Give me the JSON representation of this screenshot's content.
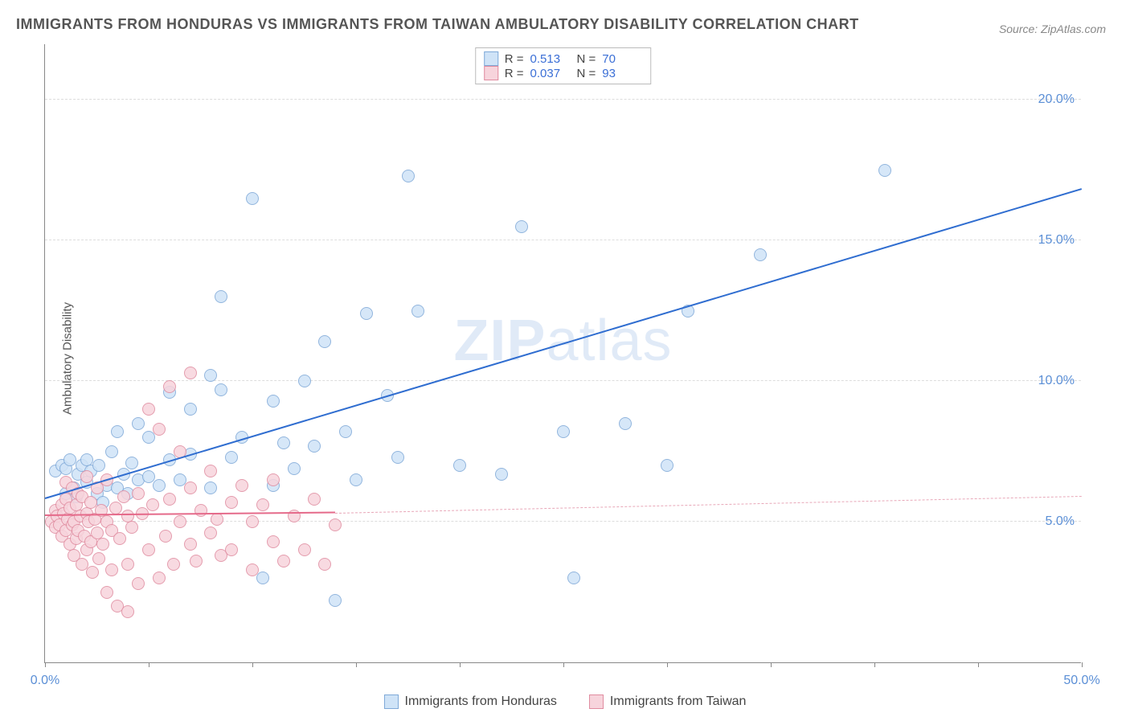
{
  "title": "IMMIGRANTS FROM HONDURAS VS IMMIGRANTS FROM TAIWAN AMBULATORY DISABILITY CORRELATION CHART",
  "source": "Source: ZipAtlas.com",
  "ylabel": "Ambulatory Disability",
  "watermark_bold": "ZIP",
  "watermark_rest": "atlas",
  "chart": {
    "type": "scatter",
    "xlim": [
      0,
      50
    ],
    "ylim": [
      0,
      22
    ],
    "ytick_values": [
      5,
      10,
      15,
      20
    ],
    "ytick_labels": [
      "5.0%",
      "10.0%",
      "15.0%",
      "20.0%"
    ],
    "xtick_values": [
      0,
      5,
      10,
      15,
      20,
      25,
      30,
      35,
      40,
      45,
      50
    ],
    "xtick_label_min": "0.0%",
    "xtick_label_max": "50.0%",
    "grid_color": "#dddddd",
    "background_color": "#ffffff",
    "marker_radius": 8,
    "marker_border_width": 1.2,
    "series": [
      {
        "name": "Immigrants from Honduras",
        "fill": "#cfe3f7",
        "stroke": "#7fa9d8",
        "r_value": "0.513",
        "n_value": "70",
        "trend": {
          "x1": 0,
          "y1": 5.8,
          "x2": 50,
          "y2": 16.8,
          "color": "#2f6dd0",
          "width": 2.5
        },
        "points": [
          [
            0.5,
            6.8
          ],
          [
            0.8,
            7.0
          ],
          [
            1.0,
            6.0
          ],
          [
            1.0,
            6.9
          ],
          [
            1.2,
            7.2
          ],
          [
            1.4,
            6.2
          ],
          [
            1.5,
            5.9
          ],
          [
            1.6,
            6.7
          ],
          [
            1.8,
            7.0
          ],
          [
            2.0,
            6.4
          ],
          [
            2.0,
            7.2
          ],
          [
            2.2,
            6.8
          ],
          [
            2.5,
            6.0
          ],
          [
            2.6,
            7.0
          ],
          [
            2.8,
            5.7
          ],
          [
            3.0,
            6.3
          ],
          [
            3.2,
            7.5
          ],
          [
            3.5,
            6.2
          ],
          [
            3.5,
            8.2
          ],
          [
            3.8,
            6.7
          ],
          [
            4.0,
            6.0
          ],
          [
            4.2,
            7.1
          ],
          [
            4.5,
            6.5
          ],
          [
            4.5,
            8.5
          ],
          [
            5.0,
            6.6
          ],
          [
            5.0,
            8.0
          ],
          [
            5.5,
            6.3
          ],
          [
            6.0,
            7.2
          ],
          [
            6.0,
            9.6
          ],
          [
            6.5,
            6.5
          ],
          [
            7.0,
            7.4
          ],
          [
            7.0,
            9.0
          ],
          [
            8.0,
            6.2
          ],
          [
            8.0,
            10.2
          ],
          [
            8.5,
            9.7
          ],
          [
            8.5,
            13.0
          ],
          [
            9.0,
            7.3
          ],
          [
            9.5,
            8.0
          ],
          [
            10.0,
            16.5
          ],
          [
            10.5,
            3.0
          ],
          [
            11.0,
            6.3
          ],
          [
            11.0,
            9.3
          ],
          [
            11.5,
            7.8
          ],
          [
            12.0,
            6.9
          ],
          [
            12.5,
            10.0
          ],
          [
            13.0,
            7.7
          ],
          [
            13.5,
            11.4
          ],
          [
            14.0,
            2.2
          ],
          [
            14.5,
            8.2
          ],
          [
            15.0,
            6.5
          ],
          [
            15.5,
            12.4
          ],
          [
            16.5,
            9.5
          ],
          [
            17.0,
            7.3
          ],
          [
            17.5,
            17.3
          ],
          [
            18.0,
            12.5
          ],
          [
            20.0,
            7.0
          ],
          [
            22.0,
            6.7
          ],
          [
            23.0,
            15.5
          ],
          [
            25.0,
            8.2
          ],
          [
            25.5,
            3.0
          ],
          [
            28.0,
            8.5
          ],
          [
            30.0,
            7.0
          ],
          [
            31.0,
            12.5
          ],
          [
            34.5,
            14.5
          ],
          [
            40.5,
            17.5
          ]
        ]
      },
      {
        "name": "Immigrants from Taiwan",
        "fill": "#f7d4dc",
        "stroke": "#e08ca0",
        "r_value": "0.037",
        "n_value": "93",
        "trend_solid": {
          "x1": 0,
          "y1": 5.2,
          "x2": 14,
          "y2": 5.3,
          "color": "#e56a8a",
          "width": 2
        },
        "trend_dash": {
          "x1": 14,
          "y1": 5.3,
          "x2": 50,
          "y2": 5.9,
          "color": "#e8a7b8",
          "width": 1.5
        },
        "points": [
          [
            0.3,
            5.0
          ],
          [
            0.5,
            4.8
          ],
          [
            0.5,
            5.4
          ],
          [
            0.6,
            5.2
          ],
          [
            0.7,
            4.9
          ],
          [
            0.8,
            5.6
          ],
          [
            0.8,
            4.5
          ],
          [
            0.9,
            5.3
          ],
          [
            1.0,
            4.7
          ],
          [
            1.0,
            5.8
          ],
          [
            1.0,
            6.4
          ],
          [
            1.1,
            5.1
          ],
          [
            1.2,
            4.2
          ],
          [
            1.2,
            5.5
          ],
          [
            1.3,
            4.9
          ],
          [
            1.3,
            6.2
          ],
          [
            1.4,
            3.8
          ],
          [
            1.4,
            5.0
          ],
          [
            1.5,
            5.6
          ],
          [
            1.5,
            4.4
          ],
          [
            1.6,
            6.0
          ],
          [
            1.6,
            4.7
          ],
          [
            1.7,
            5.2
          ],
          [
            1.8,
            3.5
          ],
          [
            1.8,
            5.9
          ],
          [
            1.9,
            4.5
          ],
          [
            2.0,
            5.3
          ],
          [
            2.0,
            4.0
          ],
          [
            2.0,
            6.6
          ],
          [
            2.1,
            5.0
          ],
          [
            2.2,
            4.3
          ],
          [
            2.2,
            5.7
          ],
          [
            2.3,
            3.2
          ],
          [
            2.4,
            5.1
          ],
          [
            2.5,
            4.6
          ],
          [
            2.5,
            6.2
          ],
          [
            2.6,
            3.7
          ],
          [
            2.7,
            5.4
          ],
          [
            2.8,
            4.2
          ],
          [
            3.0,
            5.0
          ],
          [
            3.0,
            2.5
          ],
          [
            3.0,
            6.5
          ],
          [
            3.2,
            4.7
          ],
          [
            3.2,
            3.3
          ],
          [
            3.4,
            5.5
          ],
          [
            3.5,
            2.0
          ],
          [
            3.6,
            4.4
          ],
          [
            3.8,
            5.9
          ],
          [
            4.0,
            3.5
          ],
          [
            4.0,
            5.2
          ],
          [
            4.0,
            1.8
          ],
          [
            4.2,
            4.8
          ],
          [
            4.5,
            6.0
          ],
          [
            4.5,
            2.8
          ],
          [
            4.7,
            5.3
          ],
          [
            5.0,
            4.0
          ],
          [
            5.0,
            9.0
          ],
          [
            5.2,
            5.6
          ],
          [
            5.5,
            3.0
          ],
          [
            5.5,
            8.3
          ],
          [
            5.8,
            4.5
          ],
          [
            6.0,
            5.8
          ],
          [
            6.0,
            9.8
          ],
          [
            6.2,
            3.5
          ],
          [
            6.5,
            5.0
          ],
          [
            6.5,
            7.5
          ],
          [
            7.0,
            4.2
          ],
          [
            7.0,
            6.2
          ],
          [
            7.0,
            10.3
          ],
          [
            7.3,
            3.6
          ],
          [
            7.5,
            5.4
          ],
          [
            8.0,
            4.6
          ],
          [
            8.0,
            6.8
          ],
          [
            8.3,
            5.1
          ],
          [
            8.5,
            3.8
          ],
          [
            9.0,
            5.7
          ],
          [
            9.0,
            4.0
          ],
          [
            9.5,
            6.3
          ],
          [
            10.0,
            5.0
          ],
          [
            10.0,
            3.3
          ],
          [
            10.5,
            5.6
          ],
          [
            11.0,
            4.3
          ],
          [
            11.0,
            6.5
          ],
          [
            11.5,
            3.6
          ],
          [
            12.0,
            5.2
          ],
          [
            12.5,
            4.0
          ],
          [
            13.0,
            5.8
          ],
          [
            13.5,
            3.5
          ],
          [
            14.0,
            4.9
          ]
        ]
      }
    ]
  },
  "r_legend": {
    "r_label": "R  =",
    "n_label": "N  ="
  },
  "colors": {
    "title": "#555555",
    "source": "#888888",
    "axis_label": "#555555",
    "tick_label": "#5b8fd6",
    "watermark": "#5b8fd6"
  }
}
